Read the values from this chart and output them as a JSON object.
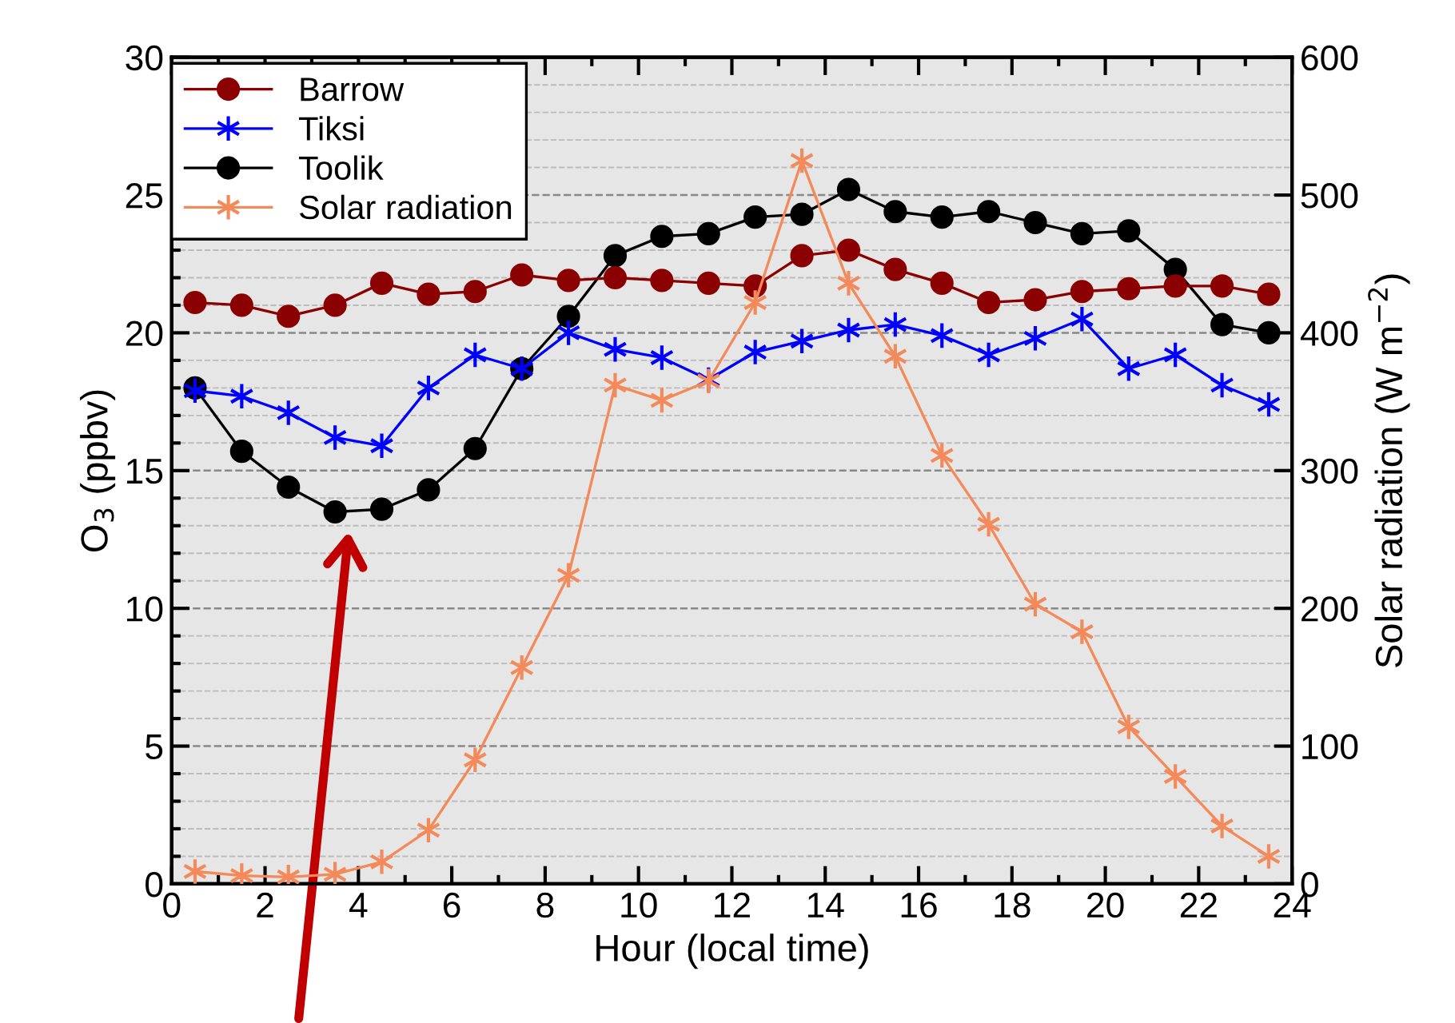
{
  "chart_data": {
    "type": "line",
    "xlabel": "Hour (local time)",
    "ylabel": "O$_{3}$ (ppbv)",
    "y2label": "Solar radiation (W m$^{−2}$)",
    "x": [
      0.5,
      1.5,
      2.5,
      3.5,
      4.5,
      5.5,
      6.5,
      7.5,
      8.5,
      9.5,
      10.5,
      11.5,
      12.5,
      13.5,
      14.5,
      15.5,
      16.5,
      17.5,
      18.5,
      19.5,
      20.5,
      21.5,
      22.5,
      23.5
    ],
    "series": [
      {
        "name": "Barrow",
        "color": "#8b0000",
        "marker": "circle",
        "values": [
          21.1,
          21.0,
          20.6,
          21.0,
          21.8,
          21.4,
          21.5,
          22.1,
          21.9,
          22.0,
          21.9,
          21.8,
          21.7,
          22.8,
          23.0,
          22.3,
          21.8,
          21.1,
          21.2,
          21.5,
          21.6,
          21.7,
          21.7,
          21.4
        ]
      },
      {
        "name": "Tiksi",
        "color": "#0000ff",
        "marker": "cross",
        "values": [
          17.9,
          17.7,
          17.1,
          16.2,
          15.9,
          18.0,
          19.2,
          18.7,
          20.0,
          19.4,
          19.1,
          18.3,
          19.3,
          19.7,
          20.1,
          20.3,
          19.9,
          19.2,
          19.8,
          20.5,
          18.7,
          19.2,
          18.1,
          17.4
        ]
      },
      {
        "name": "Toolik",
        "color": "#000000",
        "marker": "circle",
        "values": [
          18.0,
          15.7,
          14.4,
          13.5,
          13.6,
          14.3,
          15.8,
          18.7,
          20.6,
          22.8,
          23.5,
          23.6,
          24.2,
          24.3,
          25.2,
          24.4,
          24.2,
          24.4,
          24.0,
          23.6,
          23.7,
          22.3,
          20.3,
          20.0
        ]
      },
      {
        "name": "Solar radiation",
        "color": "#f4895a",
        "marker": "cross",
        "axis": "y2",
        "values": [
          9,
          6,
          5,
          7,
          16,
          39,
          90,
          157,
          224,
          362,
          351,
          365,
          422,
          525,
          436,
          383,
          311,
          261,
          203,
          183,
          114,
          78,
          42,
          20
        ]
      }
    ],
    "xlim": [
      0,
      24
    ],
    "xticks": [
      0,
      2,
      4,
      6,
      8,
      10,
      12,
      14,
      16,
      18,
      20,
      22,
      24
    ],
    "ylim": [
      0,
      30
    ],
    "yticks": [
      0,
      5,
      10,
      15,
      20,
      25,
      30
    ],
    "y2lim": [
      0,
      600
    ],
    "y2ticks": [
      0,
      100,
      200,
      300,
      400,
      500,
      600
    ],
    "grid": "y",
    "legend": "top left",
    "line_style": "solid"
  }
}
